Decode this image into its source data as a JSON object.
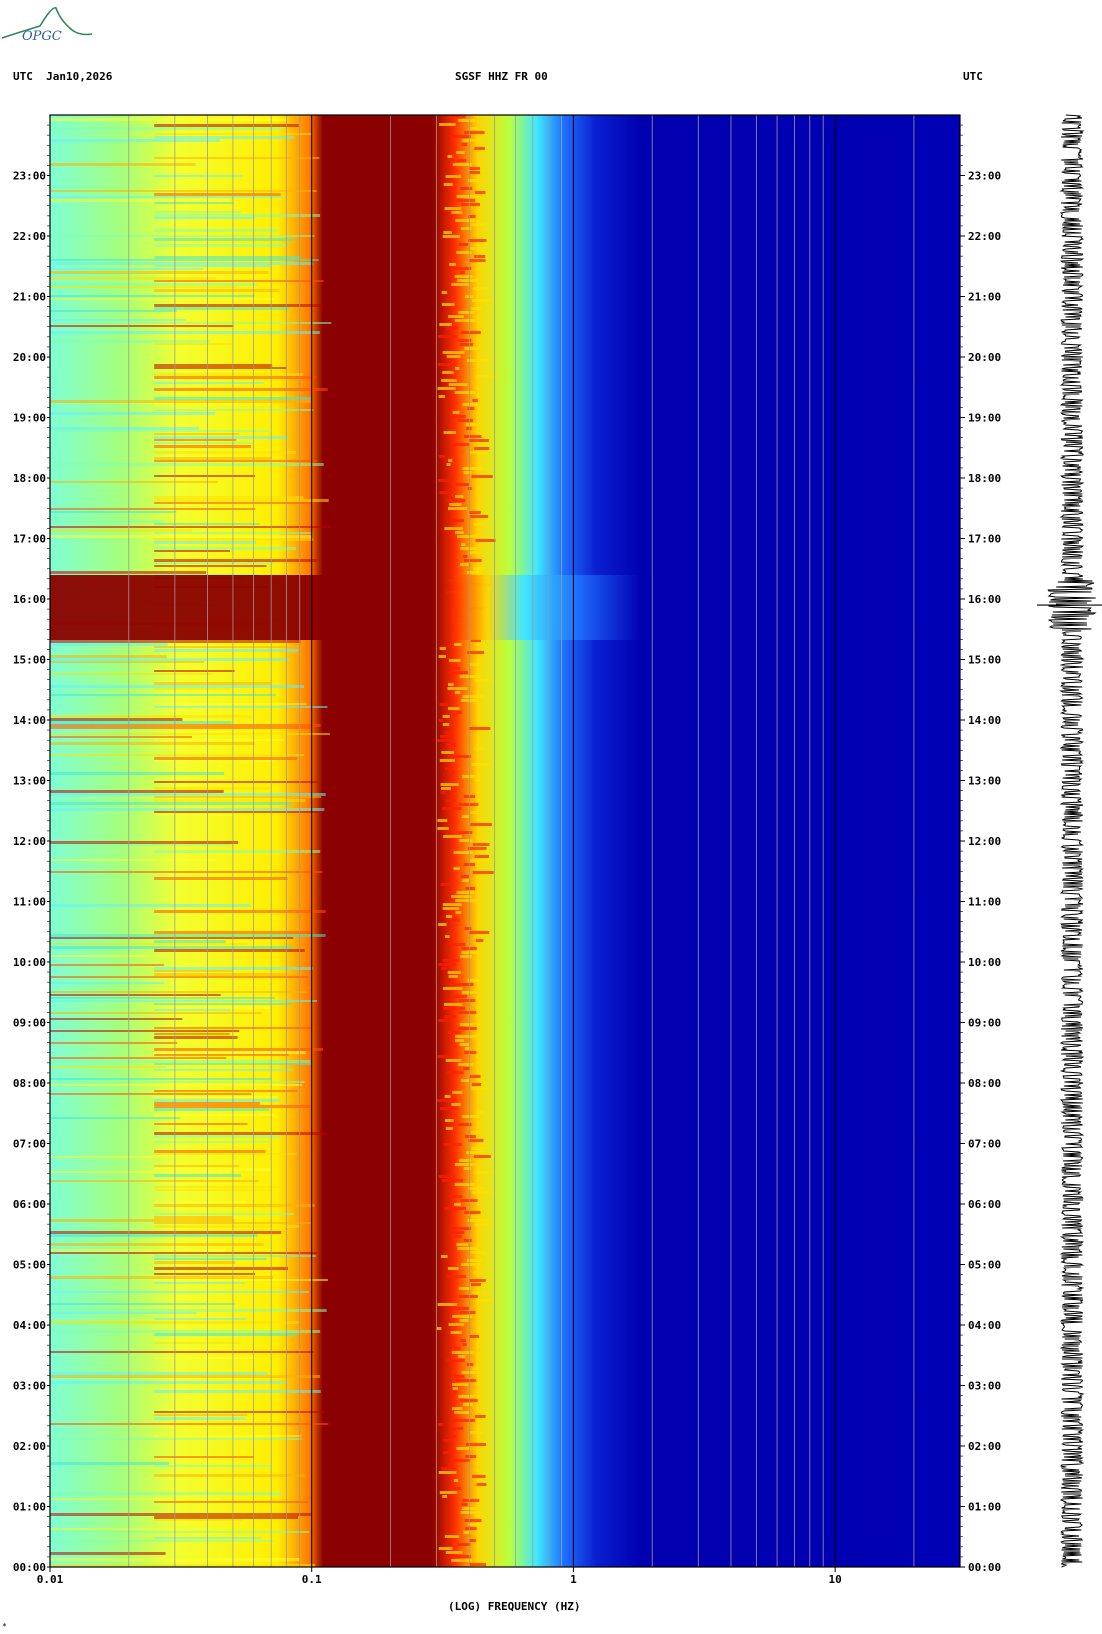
{
  "header": {
    "left": "UTC  Jan10,2026",
    "center": "SGSF HHZ FR 00",
    "right": "UTC"
  },
  "logo": {
    "text": "OPGC"
  },
  "chart_data": {
    "type": "heatmap",
    "title": "SGSF HHZ FR 00",
    "date": "Jan10,2026",
    "xlabel": "(LOG) FREQUENCY (HZ)",
    "x_scale": "log",
    "xlim": [
      0.01,
      30
    ],
    "x_ticks": [
      {
        "value": 0.01,
        "label": "0.01"
      },
      {
        "value": 0.1,
        "label": "0.1"
      },
      {
        "value": 1,
        "label": "1"
      },
      {
        "value": 10,
        "label": "10"
      }
    ],
    "ylim_hours": [
      0,
      24
    ],
    "y_ticks": [
      "00:00",
      "01:00",
      "02:00",
      "03:00",
      "04:00",
      "05:00",
      "06:00",
      "07:00",
      "08:00",
      "09:00",
      "10:00",
      "11:00",
      "12:00",
      "13:00",
      "14:00",
      "15:00",
      "16:00",
      "17:00",
      "18:00",
      "19:00",
      "20:00",
      "21:00",
      "22:00",
      "23:00"
    ],
    "colormap": [
      "#00008b",
      "#0000cd",
      "#1e4fff",
      "#00c8ff",
      "#40ffd0",
      "#b0ff50",
      "#ffff00",
      "#ffa000",
      "#ff2000",
      "#8b0000"
    ],
    "notes": {
      "microseism_band_hz": [
        0.12,
        0.3
      ],
      "broadband_event_hours": [
        15.3,
        16.4
      ],
      "seismogram_trace": "right side, amplitude burst near 16:00"
    }
  },
  "footer": {
    "mark": "*"
  }
}
